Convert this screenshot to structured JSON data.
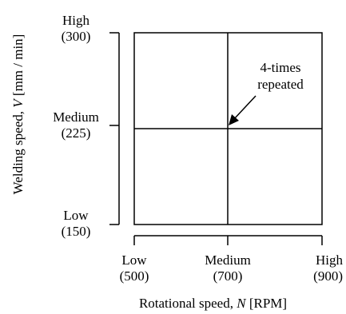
{
  "chart_data": {
    "type": "factor-grid",
    "x_levels": [
      {
        "name": "Low",
        "value": "(500)"
      },
      {
        "name": "Medium",
        "value": "(700)"
      },
      {
        "name": "High",
        "value": "(900)"
      }
    ],
    "y_levels": [
      {
        "name": "High",
        "value": "(300)"
      },
      {
        "name": "Medium",
        "value": "(225)"
      },
      {
        "name": "Low",
        "value": "(150)"
      }
    ],
    "xlabel_prefix": "Rotational speed, ",
    "xlabel_symbol": "N",
    "xlabel_unit": " [RPM]",
    "ylabel_prefix": "Welding speed, ",
    "ylabel_symbol": "V",
    "ylabel_unit": " [mm / min]",
    "annotation_line1": "4-times",
    "annotation_line2": "repeated"
  }
}
